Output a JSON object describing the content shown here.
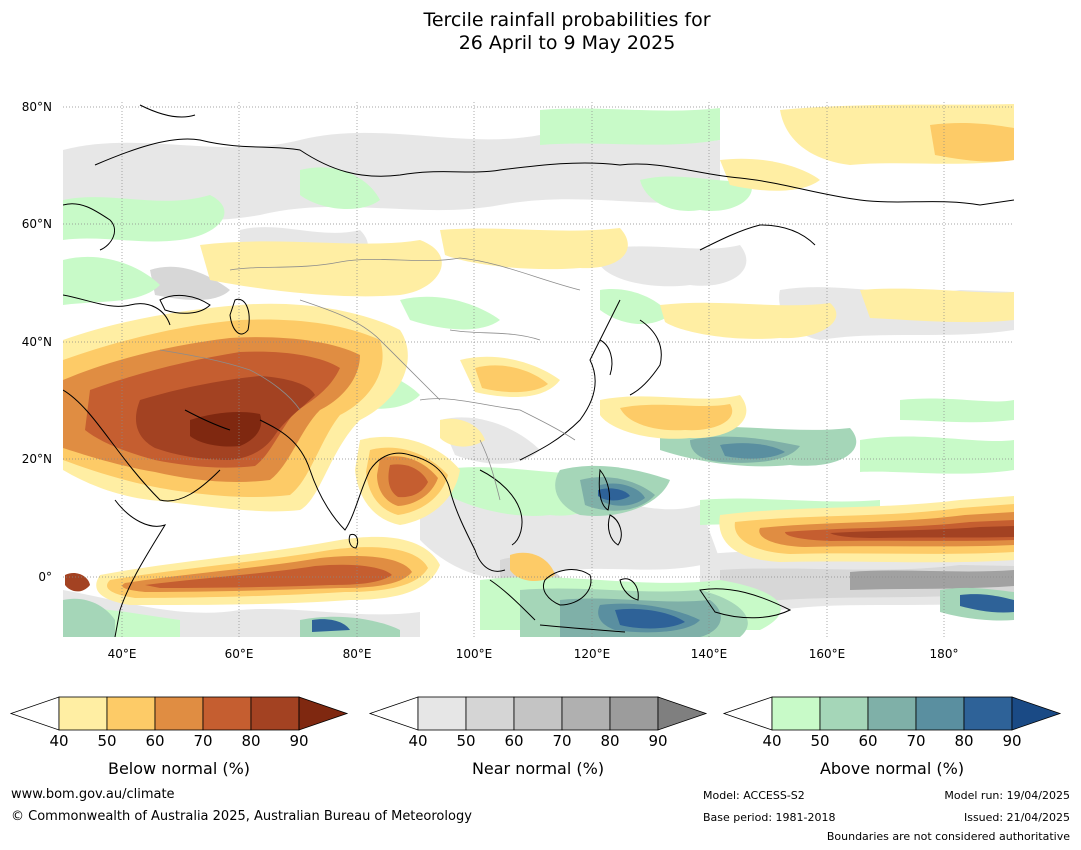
{
  "title": {
    "line1": "Tercile rainfall probabilities for",
    "line2": "26 April to 9 May 2025"
  },
  "map": {
    "lat_labels": [
      "80°N",
      "60°N",
      "40°N",
      "20°N",
      "0°"
    ],
    "lon_labels": [
      "40°E",
      "60°E",
      "80°E",
      "100°E",
      "120°E",
      "140°E",
      "160°E",
      "180°"
    ],
    "lat_range": [
      -10,
      82
    ],
    "lon_range": [
      30,
      192
    ],
    "ocean_color": "#ffffff",
    "coastline_color": "#000000",
    "border_color": "#8c8c8c",
    "grid": "dotted"
  },
  "colorbars": [
    {
      "label": "Below normal (%)",
      "ticks": [
        "40",
        "50",
        "60",
        "70",
        "80",
        "90"
      ],
      "colors": [
        "#ffeea3",
        "#fdcb67",
        "#e08d42",
        "#c55e30",
        "#a34222",
        "#7f2810"
      ]
    },
    {
      "label": "Near normal (%)",
      "ticks": [
        "40",
        "50",
        "60",
        "70",
        "80",
        "90"
      ],
      "colors": [
        "#e6e6e6",
        "#d5d5d5",
        "#c4c4c4",
        "#b0b0b0",
        "#9c9c9c",
        "#7f7f7f"
      ]
    },
    {
      "label": "Above normal (%)",
      "ticks": [
        "40",
        "50",
        "60",
        "70",
        "80",
        "90"
      ],
      "colors": [
        "#c8fac8",
        "#a5d6b8",
        "#7fb0a8",
        "#5a8fa0",
        "#2e6298",
        "#1a4a85"
      ]
    }
  ],
  "footer": {
    "website": "www.bom.gov.au/climate",
    "copyright": "© Commonwealth of Australia 2025, Australian Bureau of Meteorology",
    "model": "Model: ACCESS-S2",
    "base_period": "Base period: 1981-2018",
    "model_run": "Model run: 19/04/2025",
    "issued": "Issued: 21/04/2025",
    "disclaimer": "Boundaries are not considered authoritative"
  }
}
